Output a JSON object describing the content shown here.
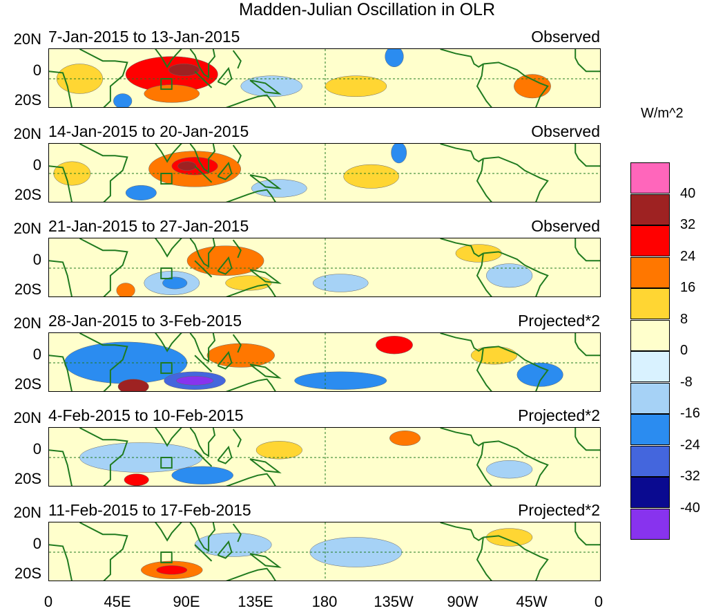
{
  "chart_data": {
    "type": "heatmap",
    "title": "Madden-Julian Oscillation in OLR",
    "colorbar_unit": "W/m^2",
    "y_ticks": [
      "20N",
      "0",
      "20S"
    ],
    "x_ticks": [
      "0",
      "45E",
      "90E",
      "135E",
      "180",
      "135W",
      "90W",
      "45W",
      "0"
    ],
    "lon_range": [
      0,
      360
    ],
    "lat_range": [
      -20,
      20
    ],
    "levels": [
      "40",
      "32",
      "24",
      "16",
      "8",
      "0",
      "-8",
      "-16",
      "-24",
      "-32",
      "-40"
    ],
    "colorbar_colors": [
      "#ff66bb",
      "#9e2222",
      "#ff0000",
      "#ff7700",
      "#ffd633",
      "#ffffcc",
      "#d9f2ff",
      "#a6d2f6",
      "#2b8cf0",
      "#4466dd",
      "#0a0a90",
      "#8833ee"
    ],
    "panels": [
      {
        "period": "7-Jan-2015 to 13-Jan-2015",
        "status": "Observed",
        "anomalies": [
          {
            "lon": 80,
            "lat": 3,
            "rx": 30,
            "ry": 12,
            "value": 24
          },
          {
            "lon": 88,
            "lat": 6,
            "rx": 10,
            "ry": 4,
            "value": 32
          },
          {
            "lon": 80,
            "lat": -10,
            "rx": 18,
            "ry": 6,
            "value": 16
          },
          {
            "lon": 20,
            "lat": 0,
            "rx": 15,
            "ry": 10,
            "value": 8
          },
          {
            "lon": 315,
            "lat": -5,
            "rx": 12,
            "ry": 8,
            "value": 16
          },
          {
            "lon": 145,
            "lat": -5,
            "rx": 20,
            "ry": 7,
            "value": -8
          },
          {
            "lon": 225,
            "lat": 15,
            "rx": 6,
            "ry": 7,
            "value": -16
          },
          {
            "lon": 48,
            "lat": -15,
            "rx": 6,
            "ry": 5,
            "value": -16
          },
          {
            "lon": 200,
            "lat": -5,
            "rx": 20,
            "ry": 7,
            "value": 8
          }
        ]
      },
      {
        "period": "14-Jan-2015 to 20-Jan-2015",
        "status": "Observed",
        "anomalies": [
          {
            "lon": 95,
            "lat": 3,
            "rx": 30,
            "ry": 12,
            "value": 16
          },
          {
            "lon": 95,
            "lat": 5,
            "rx": 15,
            "ry": 6,
            "value": 24
          },
          {
            "lon": 90,
            "lat": 5,
            "rx": 6,
            "ry": 3,
            "value": 32
          },
          {
            "lon": 60,
            "lat": -13,
            "rx": 10,
            "ry": 5,
            "value": -16
          },
          {
            "lon": 150,
            "lat": -10,
            "rx": 18,
            "ry": 6,
            "value": -8
          },
          {
            "lon": 228,
            "lat": 14,
            "rx": 5,
            "ry": 7,
            "value": -16
          },
          {
            "lon": 210,
            "lat": -2,
            "rx": 18,
            "ry": 8,
            "value": 8
          },
          {
            "lon": 15,
            "lat": 0,
            "rx": 12,
            "ry": 8,
            "value": 8
          }
        ]
      },
      {
        "period": "21-Jan-2015 to 27-Jan-2015",
        "status": "Observed",
        "anomalies": [
          {
            "lon": 115,
            "lat": 5,
            "rx": 25,
            "ry": 10,
            "value": 16
          },
          {
            "lon": 130,
            "lat": -10,
            "rx": 15,
            "ry": 5,
            "value": 8
          },
          {
            "lon": 80,
            "lat": -10,
            "rx": 18,
            "ry": 8,
            "value": -8
          },
          {
            "lon": 82,
            "lat": -10,
            "rx": 8,
            "ry": 4,
            "value": -16
          },
          {
            "lon": 50,
            "lat": -15,
            "rx": 6,
            "ry": 5,
            "value": 16
          },
          {
            "lon": 190,
            "lat": -10,
            "rx": 18,
            "ry": 6,
            "value": -8
          },
          {
            "lon": 280,
            "lat": 10,
            "rx": 15,
            "ry": 6,
            "value": 8
          },
          {
            "lon": 300,
            "lat": -5,
            "rx": 15,
            "ry": 8,
            "value": -8
          }
        ]
      },
      {
        "period": "28-Jan-2015 to 3-Feb-2015",
        "status": "Projected*2",
        "anomalies": [
          {
            "lon": 50,
            "lat": 0,
            "rx": 40,
            "ry": 14,
            "value": -16
          },
          {
            "lon": 95,
            "lat": -12,
            "rx": 20,
            "ry": 6,
            "value": -24
          },
          {
            "lon": 95,
            "lat": -12,
            "rx": 12,
            "ry": 3,
            "value": -40
          },
          {
            "lon": 55,
            "lat": -16,
            "rx": 10,
            "ry": 5,
            "value": 32
          },
          {
            "lon": 125,
            "lat": 5,
            "rx": 22,
            "ry": 8,
            "value": 16
          },
          {
            "lon": 225,
            "lat": 12,
            "rx": 12,
            "ry": 6,
            "value": 24
          },
          {
            "lon": 190,
            "lat": -12,
            "rx": 30,
            "ry": 6,
            "value": -16
          },
          {
            "lon": 320,
            "lat": -8,
            "rx": 15,
            "ry": 8,
            "value": -16
          },
          {
            "lon": 290,
            "lat": 5,
            "rx": 15,
            "ry": 6,
            "value": 8
          }
        ]
      },
      {
        "period": "4-Feb-2015 to 10-Feb-2015",
        "status": "Projected*2",
        "anomalies": [
          {
            "lon": 60,
            "lat": 0,
            "rx": 40,
            "ry": 10,
            "value": -8
          },
          {
            "lon": 100,
            "lat": -12,
            "rx": 20,
            "ry": 6,
            "value": -16
          },
          {
            "lon": 57,
            "lat": -15,
            "rx": 8,
            "ry": 4,
            "value": 24
          },
          {
            "lon": 150,
            "lat": 5,
            "rx": 15,
            "ry": 6,
            "value": 8
          },
          {
            "lon": 232,
            "lat": 13,
            "rx": 10,
            "ry": 5,
            "value": 16
          },
          {
            "lon": 300,
            "lat": -8,
            "rx": 15,
            "ry": 6,
            "value": -8
          }
        ]
      },
      {
        "period": "11-Feb-2015 to 17-Feb-2015",
        "status": "Projected*2",
        "anomalies": [
          {
            "lon": 80,
            "lat": -12,
            "rx": 20,
            "ry": 6,
            "value": 16
          },
          {
            "lon": 80,
            "lat": -12,
            "rx": 10,
            "ry": 3,
            "value": 24
          },
          {
            "lon": 120,
            "lat": 5,
            "rx": 25,
            "ry": 8,
            "value": -8
          },
          {
            "lon": 200,
            "lat": 0,
            "rx": 30,
            "ry": 10,
            "value": -8
          },
          {
            "lon": 300,
            "lat": 10,
            "rx": 15,
            "ry": 6,
            "value": 8
          }
        ]
      }
    ]
  }
}
